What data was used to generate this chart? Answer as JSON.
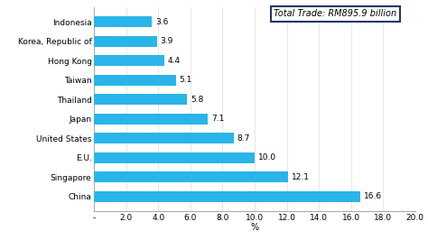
{
  "categories": [
    "China",
    "Singapore",
    "E.U.",
    "United States",
    "Japan",
    "Thailand",
    "Taiwan",
    "Hong Kong",
    "Korea, Republic of",
    "Indonesia"
  ],
  "values": [
    16.6,
    12.1,
    10.0,
    8.7,
    7.1,
    5.8,
    5.1,
    4.4,
    3.9,
    3.6
  ],
  "bar_color_left": "#00BFFF",
  "bar_color_right": "#1E90FF",
  "xlabel": "%",
  "xlim": [
    0,
    20.0
  ],
  "xticks": [
    0,
    2.0,
    4.0,
    6.0,
    8.0,
    10.0,
    12.0,
    14.0,
    16.0,
    18.0,
    20.0
  ],
  "xtick_labels": [
    "-",
    "2.0",
    "4.0",
    "6.0",
    "8.0",
    "10.0",
    "12.0",
    "14.0",
    "16.0",
    "18.0",
    "20.0"
  ],
  "annotation_text": "Total Trade: RM895.9 billion",
  "value_label_fontsize": 6.5,
  "ylabel_fontsize": 6.5,
  "xlabel_fontsize": 7,
  "tick_fontsize": 6.5,
  "annotation_fontsize": 7,
  "background_color": "#ffffff",
  "bar_color": "#29B5E8",
  "spine_color": "#aaaaaa",
  "grid_color": "#dddddd",
  "annotation_border_color": "#1F3864",
  "bar_height": 0.55
}
